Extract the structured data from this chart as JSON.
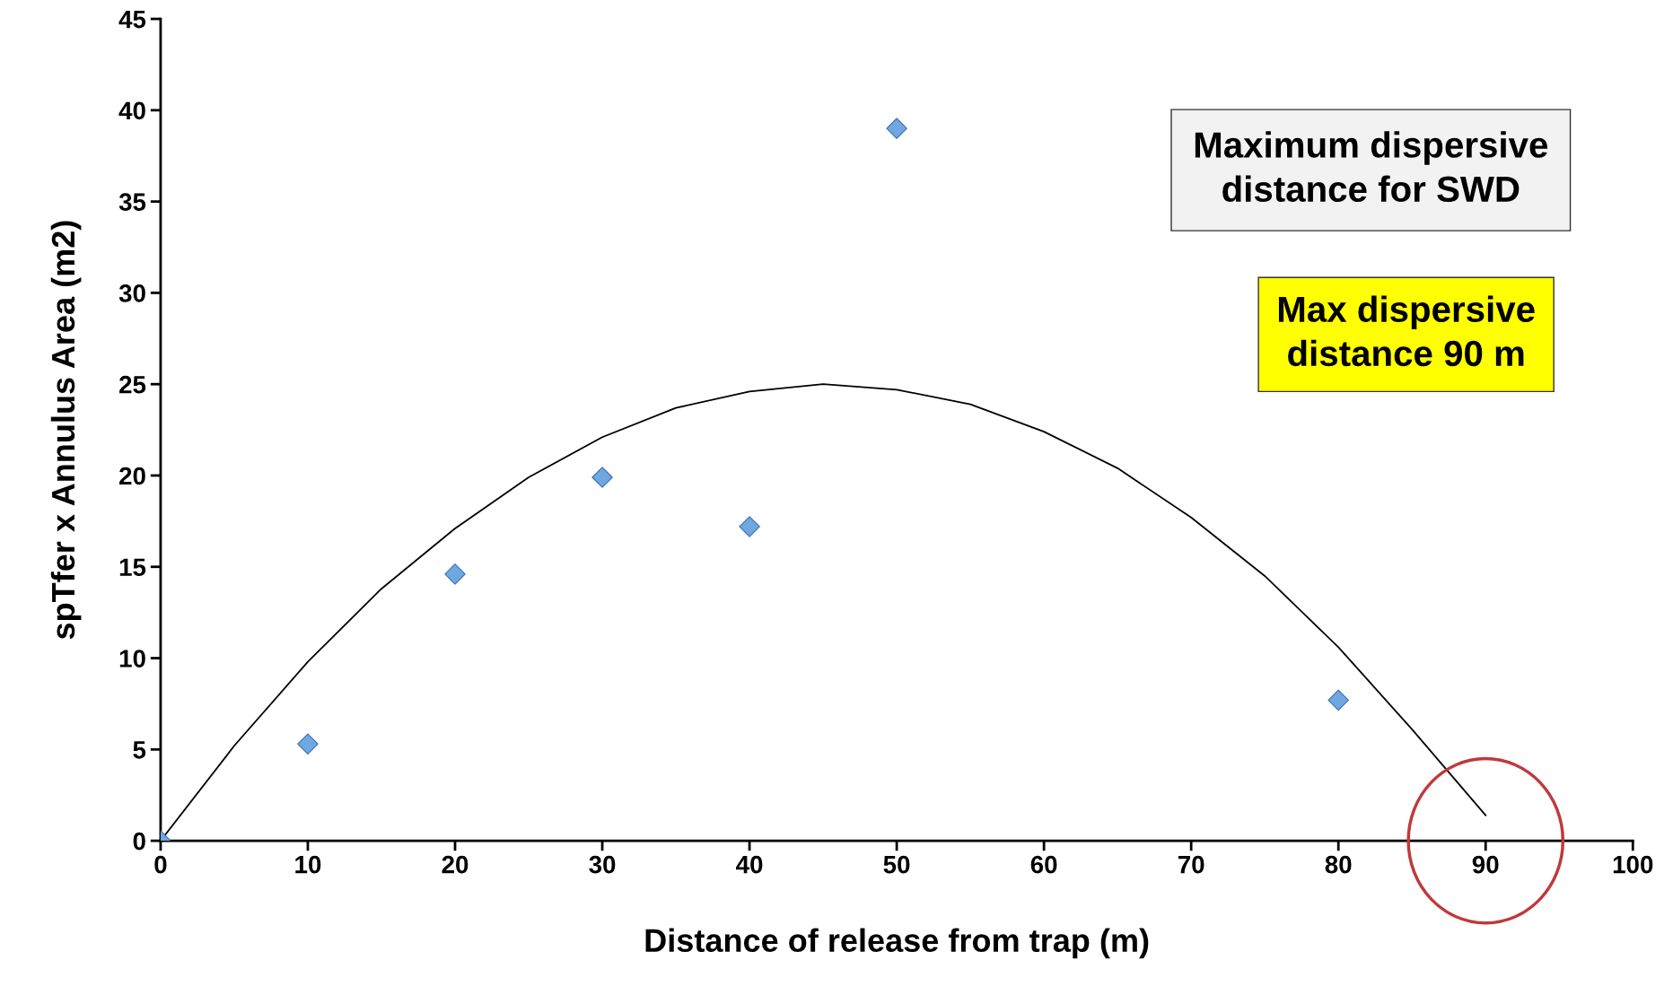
{
  "chart_data": {
    "type": "scatter",
    "xlabel": "Distance of release from trap (m)",
    "ylabel": "spTfer x Annulus Area (m2)",
    "xlim": [
      0,
      100
    ],
    "xticks": [
      0,
      10,
      20,
      30,
      40,
      50,
      60,
      70,
      80,
      90,
      100
    ],
    "ylim": [
      0,
      45
    ],
    "yticks": [
      0,
      5,
      10,
      15,
      20,
      25,
      30,
      35,
      40,
      45
    ],
    "grid": false,
    "legend": false,
    "series": [
      {
        "marker": "diamond",
        "color": "#6fa8e0",
        "x": [
          0,
          10,
          20,
          30,
          40,
          50,
          80
        ],
        "values": [
          0,
          5.3,
          14.6,
          19.9,
          17.2,
          39.0,
          7.7
        ]
      },
      {
        "type": "line",
        "marker": "none",
        "line_style": "solid",
        "color": "#000000",
        "x": [
          0,
          5,
          10,
          15,
          20,
          25,
          30,
          35,
          40,
          45,
          50,
          55,
          60,
          65,
          70,
          75,
          80,
          85,
          90
        ],
        "values": [
          0,
          5.2,
          9.8,
          13.8,
          17.1,
          19.9,
          22.1,
          23.7,
          24.6,
          25.0,
          24.7,
          23.9,
          22.4,
          20.4,
          17.7,
          14.5,
          10.6,
          6.1,
          1.4
        ]
      }
    ],
    "annotations": [
      "Maximum dispersive\ndistance for SWD",
      "Max dispersive\ndistance 90 m"
    ]
  }
}
